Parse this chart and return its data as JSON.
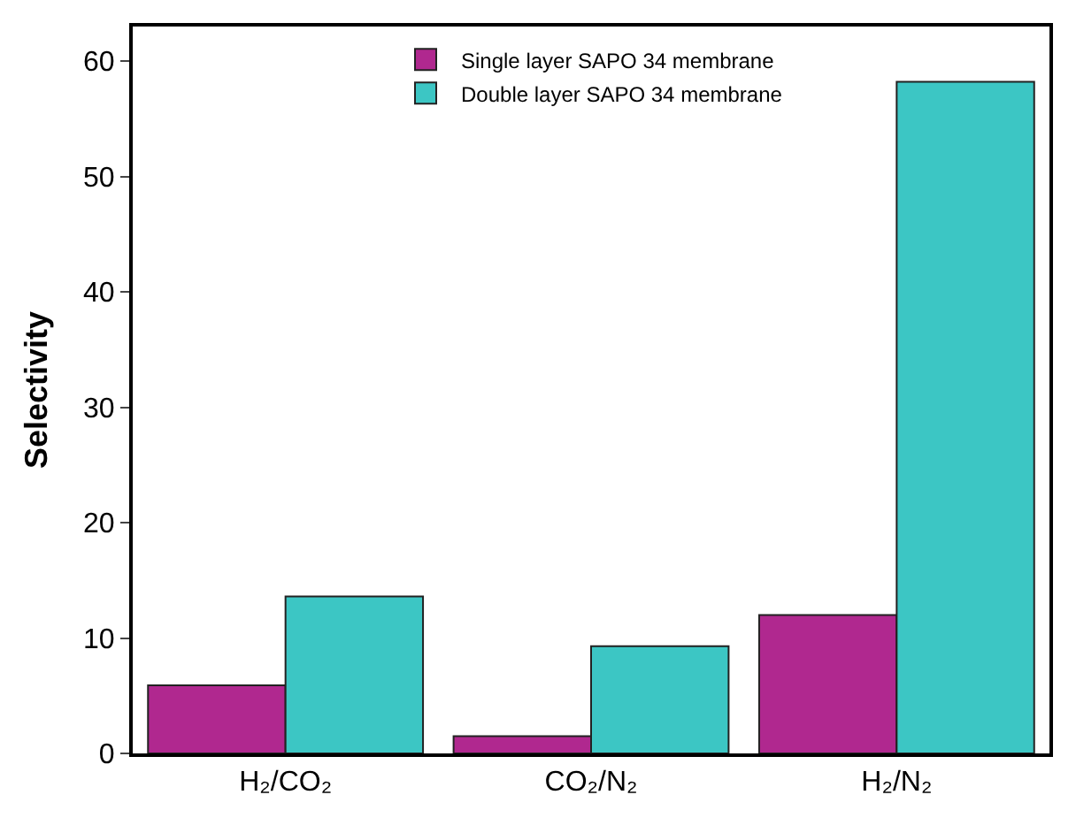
{
  "chart_data": {
    "type": "bar",
    "ylabel": "Selectivity",
    "categories": [
      "H₂/CO₂",
      "CO₂/N₂",
      "H₂/N₂"
    ],
    "series": [
      {
        "name": "Single layer SAPO 34 membrane",
        "color": "#b0288f",
        "values": [
          5.9,
          1.5,
          12
        ]
      },
      {
        "name": "Double layer SAPO 34 membrane",
        "color": "#3cc6c4",
        "values": [
          13.6,
          9.3,
          58.2
        ]
      }
    ],
    "ylim": [
      0,
      63
    ],
    "yticks": [
      0,
      10,
      20,
      30,
      40,
      50,
      60
    ],
    "legend": "top"
  }
}
